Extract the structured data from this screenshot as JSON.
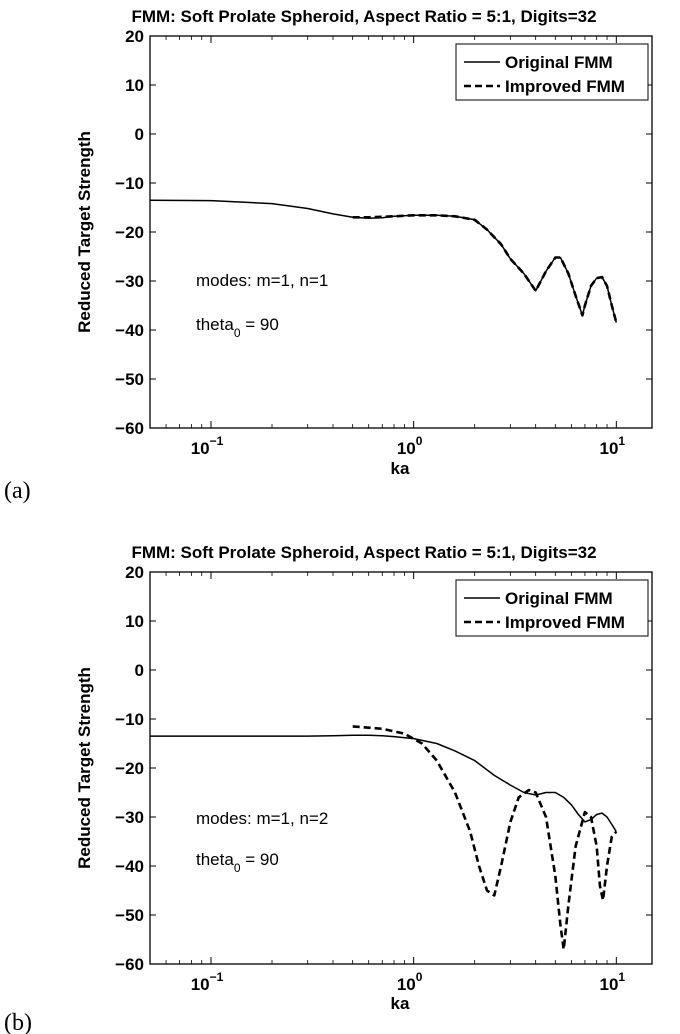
{
  "chart_data": [
    {
      "type": "line",
      "panel_label": "(a)",
      "title": "FMM: Soft Prolate Spheroid, Aspect Ratio = 5:1, Digits=32",
      "xlabel": "ka",
      "ylabel": "Reduced Target Strength",
      "xscale": "log",
      "xlim": [
        0.05,
        15
      ],
      "ylim": [
        -60,
        20
      ],
      "x_ticks": [
        {
          "base": "10",
          "exp": "−1"
        },
        {
          "base": "10",
          "exp": "0"
        },
        {
          "base": "10",
          "exp": "1"
        }
      ],
      "y_ticks": [
        "20",
        "10",
        "0",
        "−10",
        "−20",
        "−30",
        "−40",
        "−50",
        "−60"
      ],
      "legend_position": "top-right",
      "annotations": {
        "modes": "modes: m=1, n=1",
        "theta_prefix": "theta",
        "theta_sub": "0",
        "theta_suffix": " = 90"
      },
      "series": [
        {
          "name": "Original FMM",
          "style": "solid",
          "x": [
            0.05,
            0.1,
            0.2,
            0.3,
            0.4,
            0.5,
            0.6,
            0.7,
            0.8,
            1.0,
            1.3,
            1.6,
            2.0,
            2.3,
            2.7,
            3.0,
            3.5,
            4.0,
            4.5,
            5.0,
            5.3,
            5.8,
            6.3,
            6.8,
            7.0,
            7.5,
            8.0,
            8.5,
            9.0,
            9.5,
            10.0
          ],
          "y": [
            -13.5,
            -13.6,
            -14.2,
            -15.2,
            -16.3,
            -17.0,
            -17.2,
            -17.1,
            -16.8,
            -16.6,
            -16.6,
            -16.8,
            -17.5,
            -19.5,
            -22.5,
            -25.5,
            -28.5,
            -32.0,
            -28.0,
            -25.2,
            -25.2,
            -28.5,
            -33.0,
            -37.0,
            -35.0,
            -31.0,
            -29.4,
            -29.2,
            -31.0,
            -35.0,
            -38.5
          ]
        },
        {
          "name": "Improved FMM",
          "style": "dashed",
          "x": [
            0.5,
            0.6,
            0.7,
            0.8,
            1.0,
            1.3,
            1.6,
            2.0,
            2.3,
            2.7,
            3.0,
            3.5,
            4.0,
            4.5,
            5.0,
            5.3,
            5.8,
            6.3,
            6.8,
            7.0,
            7.5,
            8.0,
            8.5,
            9.0,
            9.5,
            10.0
          ],
          "y": [
            -17.0,
            -17.0,
            -16.9,
            -16.8,
            -16.6,
            -16.6,
            -16.8,
            -17.5,
            -19.5,
            -22.5,
            -25.5,
            -28.5,
            -32.0,
            -28.0,
            -25.2,
            -25.2,
            -28.5,
            -33.0,
            -37.0,
            -35.0,
            -31.0,
            -29.4,
            -29.2,
            -31.0,
            -35.0,
            -38.5
          ]
        }
      ]
    },
    {
      "type": "line",
      "panel_label": "(b)",
      "title": "FMM: Soft Prolate Spheroid, Aspect Ratio = 5:1, Digits=32",
      "xlabel": "ka",
      "ylabel": "Reduced Target Strength",
      "xscale": "log",
      "xlim": [
        0.05,
        15
      ],
      "ylim": [
        -60,
        20
      ],
      "x_ticks": [
        {
          "base": "10",
          "exp": "−1"
        },
        {
          "base": "10",
          "exp": "0"
        },
        {
          "base": "10",
          "exp": "1"
        }
      ],
      "y_ticks": [
        "20",
        "10",
        "0",
        "−10",
        "−20",
        "−30",
        "−40",
        "−50",
        "−60"
      ],
      "legend_position": "top-right",
      "annotations": {
        "modes": "modes: m=1, n=2",
        "theta_prefix": "theta",
        "theta_sub": "0",
        "theta_suffix": " = 90"
      },
      "series": [
        {
          "name": "Original FMM",
          "style": "solid",
          "x": [
            0.05,
            0.1,
            0.2,
            0.3,
            0.4,
            0.5,
            0.6,
            0.7,
            0.8,
            1.0,
            1.3,
            1.6,
            2.0,
            2.5,
            3.0,
            3.5,
            4.0,
            4.5,
            5.0,
            5.5,
            6.0,
            6.5,
            7.0,
            7.5,
            8.0,
            8.5,
            9.0,
            9.5,
            10.0
          ],
          "y": [
            -13.5,
            -13.5,
            -13.5,
            -13.5,
            -13.4,
            -13.3,
            -13.3,
            -13.4,
            -13.6,
            -14.0,
            -15.0,
            -16.5,
            -18.5,
            -21.5,
            -23.5,
            -25.0,
            -25.5,
            -25.0,
            -25.0,
            -26.0,
            -27.5,
            -29.5,
            -31.0,
            -30.5,
            -29.5,
            -29.2,
            -30.0,
            -31.5,
            -33.0
          ]
        },
        {
          "name": "Improved FMM",
          "style": "dashed",
          "x": [
            0.5,
            0.7,
            0.9,
            1.1,
            1.3,
            1.6,
            1.9,
            2.1,
            2.3,
            2.5,
            2.7,
            3.0,
            3.3,
            3.7,
            4.0,
            4.5,
            5.0,
            5.3,
            5.5,
            5.8,
            6.3,
            7.0,
            7.5,
            8.0,
            8.3,
            8.6,
            9.0,
            9.5,
            10.0
          ],
          "y": [
            -11.5,
            -12.0,
            -13.0,
            -15.0,
            -18.5,
            -25.0,
            -33.0,
            -40.0,
            -45.0,
            -46.0,
            -40.0,
            -31.0,
            -26.0,
            -24.5,
            -25.0,
            -30.0,
            -42.0,
            -52.0,
            -57.0,
            -48.0,
            -36.0,
            -29.0,
            -30.0,
            -36.0,
            -44.0,
            -47.0,
            -40.0,
            -34.0,
            -33.0
          ]
        }
      ]
    }
  ]
}
